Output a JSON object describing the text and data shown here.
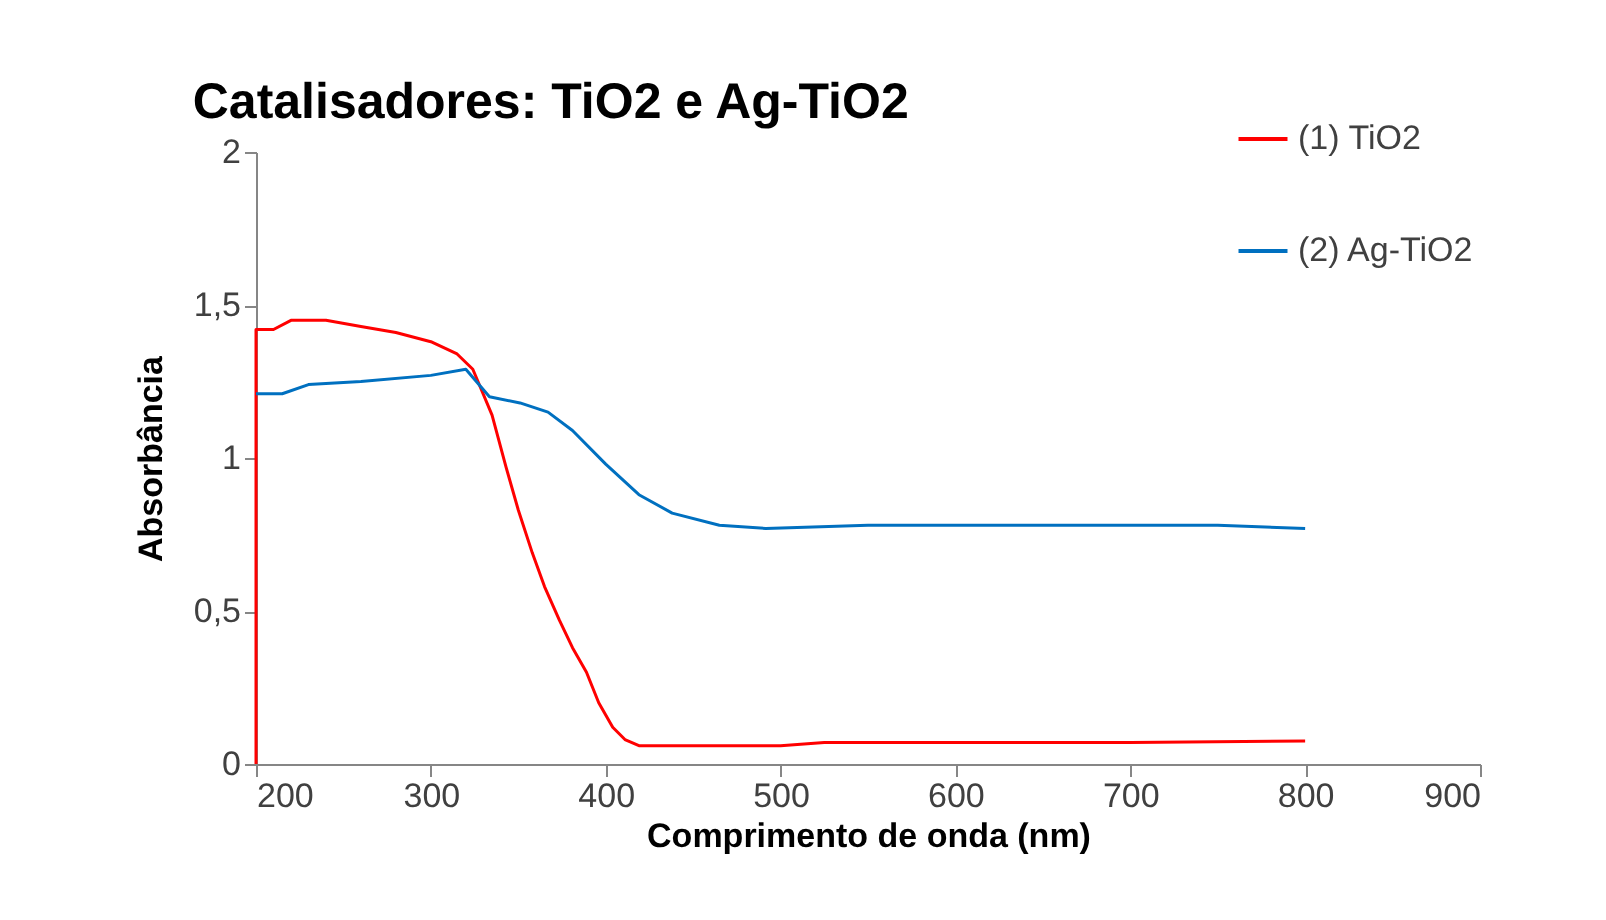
{
  "chart_data": {
    "type": "line",
    "title": "Catalisadores: TiO2 e Ag-TiO2",
    "xlabel": "Comprimento de onda (nm)",
    "ylabel": "Absorbância",
    "xlim": [
      200,
      900
    ],
    "xticks": [
      200,
      300,
      400,
      500,
      600,
      700,
      800,
      900
    ],
    "ylim": [
      0,
      2
    ],
    "yticks": [
      0,
      {
        "value": 0.5,
        "label": "0,5"
      },
      1,
      {
        "value": 1.5,
        "label": "1,5"
      },
      2
    ],
    "grid": false,
    "legend": "top right",
    "marker": "none",
    "line_style": "solid",
    "series": [
      {
        "name": "(1) TiO2",
        "color": "#ff0000",
        "x": [
          200,
          200,
          210,
          220,
          240,
          260,
          280,
          300,
          315,
          324,
          335,
          343,
          350,
          358,
          365,
          373.5,
          381,
          389,
          396,
          404,
          411,
          419,
          430,
          460,
          500,
          525,
          600,
          700,
          800
        ],
        "values": [
          0,
          1.42,
          1.42,
          1.45,
          1.45,
          1.43,
          1.41,
          1.38,
          1.34,
          1.29,
          1.14,
          0.97,
          0.83,
          0.69,
          0.58,
          0.47,
          0.38,
          0.3,
          0.2,
          0.12,
          0.08,
          0.06,
          0.06,
          0.06,
          0.06,
          0.07,
          0.07,
          0.07,
          0.075
        ]
      },
      {
        "name": "(2) Ag-TiO2",
        "color": "#0070c0",
        "x": [
          200,
          215,
          230,
          260,
          300,
          320,
          333.5,
          351,
          367,
          381,
          400,
          419,
          438,
          465,
          491.5,
          550,
          650,
          750,
          800
        ],
        "values": [
          1.21,
          1.21,
          1.24,
          1.25,
          1.27,
          1.29,
          1.2,
          1.18,
          1.15,
          1.09,
          0.98,
          0.88,
          0.82,
          0.78,
          0.77,
          0.78,
          0.78,
          0.78,
          0.77
        ]
      }
    ]
  }
}
